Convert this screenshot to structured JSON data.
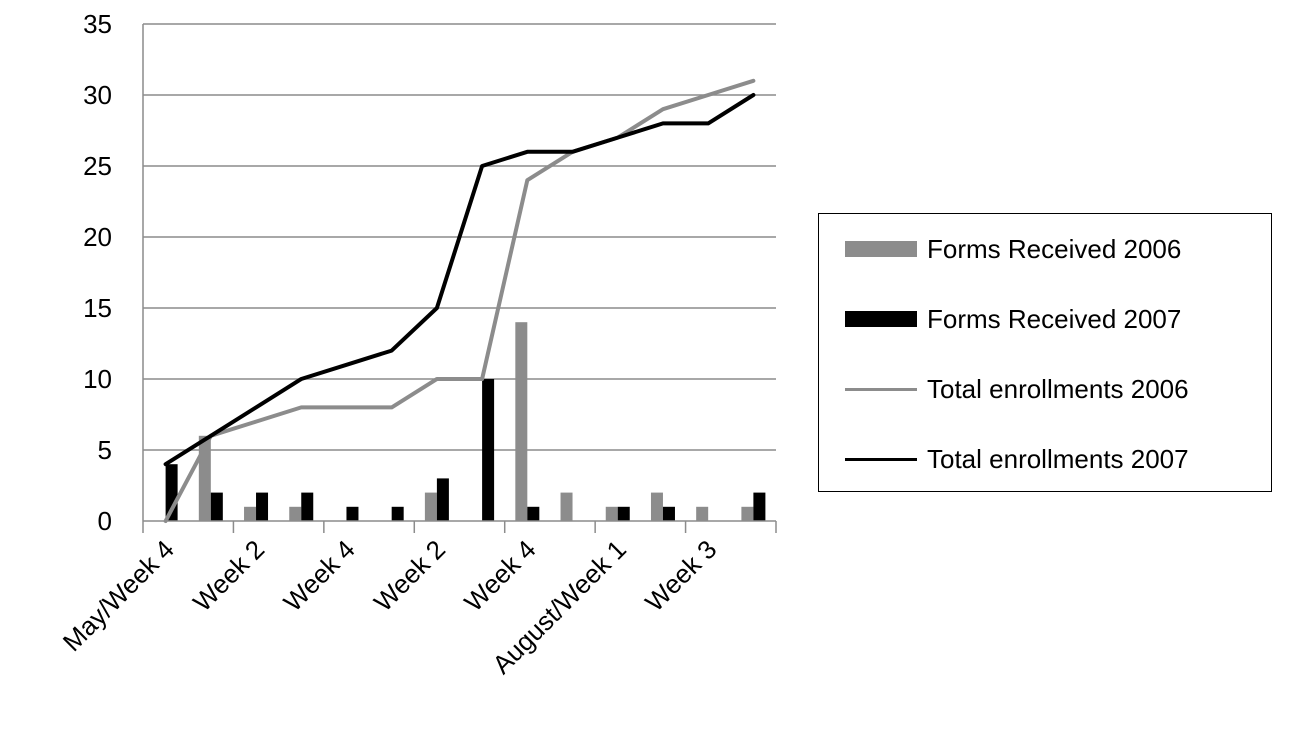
{
  "chart_data": {
    "type": "bar+line",
    "categories": [
      "May/Week 4",
      "",
      "Week 2",
      "",
      "Week 4",
      "",
      "Week 2",
      "",
      "Week 4",
      "",
      "August/Week 1",
      "",
      "Week 3",
      ""
    ],
    "ylim": [
      0,
      35
    ],
    "yticks": [
      0,
      5,
      10,
      15,
      20,
      25,
      30,
      35
    ],
    "grid": true,
    "legend_placement": "right",
    "series": [
      {
        "name": "Forms Received 2006",
        "kind": "bar",
        "color": "#8c8c8c",
        "values": [
          0,
          6,
          1,
          1,
          0,
          0,
          2,
          0,
          14,
          2,
          1,
          2,
          1,
          1
        ]
      },
      {
        "name": "Forms Received 2007",
        "kind": "bar",
        "color": "#000000",
        "values": [
          4,
          2,
          2,
          2,
          1,
          1,
          3,
          10,
          1,
          0,
          1,
          1,
          0,
          2
        ]
      },
      {
        "name": "Total enrollments 2006",
        "kind": "line",
        "color": "#8c8c8c",
        "values": [
          0,
          6,
          7,
          8,
          8,
          8,
          10,
          10,
          24,
          26,
          27,
          29,
          30,
          31
        ]
      },
      {
        "name": "Total enrollments 2007",
        "kind": "line",
        "color": "#000000",
        "values": [
          4,
          6,
          8,
          10,
          11,
          12,
          15,
          25,
          26,
          26,
          27,
          28,
          28,
          30
        ]
      }
    ]
  }
}
